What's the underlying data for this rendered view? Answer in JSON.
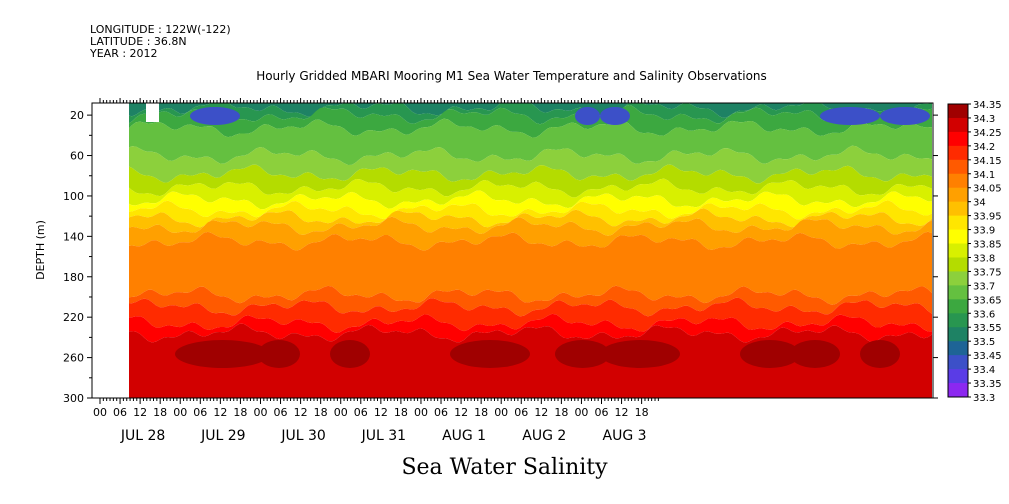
{
  "header": {
    "longitude": "LONGITUDE : 122W(-122)",
    "latitude": "LATITUDE : 36.8N",
    "year": "YEAR : 2012",
    "title": "Hourly Gridded MBARI Mooring M1 Sea Water Temperature and Salinity Observations"
  },
  "footer": {
    "variable": "Sea Water Salinity"
  },
  "chart_data": {
    "type": "heatmap",
    "title": "Hourly Gridded MBARI Mooring M1 Sea Water Temperature and Salinity Observations",
    "ylabel": "DEPTH (m)",
    "xlabel": "",
    "y_ticks": [
      20,
      60,
      100,
      140,
      180,
      220,
      260,
      300
    ],
    "ylim": [
      300,
      8
    ],
    "x_hour_ticks": [
      "00",
      "06",
      "12",
      "18",
      "00",
      "06",
      "12",
      "18",
      "00",
      "06",
      "12",
      "18",
      "00",
      "06",
      "12",
      "18",
      "00",
      "06",
      "12",
      "18",
      "00",
      "06",
      "12",
      "18",
      "00",
      "06",
      "12",
      "18"
    ],
    "x_day_labels": [
      "JUL 28",
      "JUL 29",
      "JUL 30",
      "JUL 31",
      "AUG 1",
      "AUG 2",
      "AUG 3"
    ],
    "colorbar": {
      "levels": [
        34.35,
        34.3,
        34.25,
        34.2,
        34.15,
        34.1,
        34.05,
        34,
        33.95,
        33.9,
        33.85,
        33.8,
        33.75,
        33.7,
        33.65,
        33.6,
        33.55,
        33.5,
        33.45,
        33.4,
        33.35,
        33.3
      ],
      "colors": [
        "#a00000",
        "#d20000",
        "#ff0000",
        "#ff2b00",
        "#ff5a00",
        "#ff8000",
        "#ffa000",
        "#ffc000",
        "#ffe600",
        "#ffff00",
        "#d8f000",
        "#b4dc00",
        "#8cd03c",
        "#64c040",
        "#3ca840",
        "#289650",
        "#1e8264",
        "#1e6496",
        "#3c50c8",
        "#5a3ce6",
        "#8c28f0",
        "#c81efa"
      ]
    },
    "no_data": "before JUL 28 06"
  }
}
